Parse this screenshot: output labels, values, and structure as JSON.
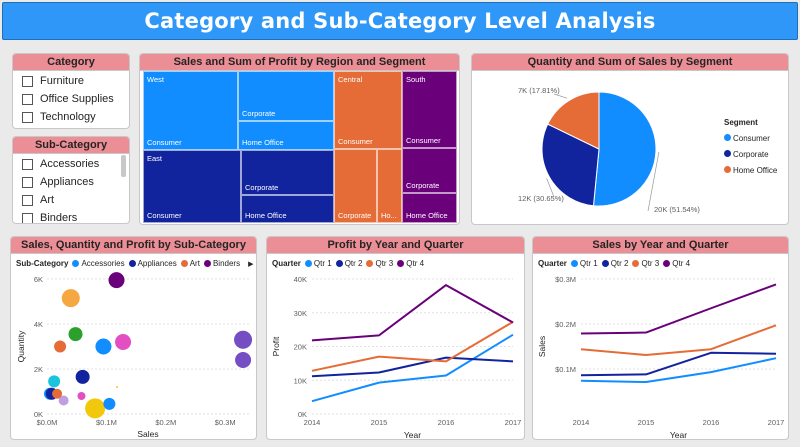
{
  "header": {
    "title": "Category and Sub-Category Level Analysis"
  },
  "category_slicer": {
    "title": "Category",
    "items": [
      "Furniture",
      "Office Supplies",
      "Technology"
    ]
  },
  "subcategory_slicer": {
    "title": "Sub-Category",
    "items": [
      "Accessories",
      "Appliances",
      "Art",
      "Binders"
    ]
  },
  "treemap": {
    "title": "Sales and Sum of Profit by Region and Segment",
    "regions": [
      {
        "name": "West",
        "color": "#118dff",
        "segments": [
          "Consumer",
          "Corporate",
          "Home Office"
        ]
      },
      {
        "name": "East",
        "color": "#12239e",
        "segments": [
          "Consumer",
          "Corporate",
          "Home Office"
        ]
      },
      {
        "name": "Central",
        "color": "#e66c37",
        "segments": [
          "Consumer",
          "Corporate",
          "Ho..."
        ]
      },
      {
        "name": "South",
        "color": "#6b007b",
        "segments": [
          "Consumer",
          "Corporate",
          "Home Office"
        ]
      }
    ]
  },
  "pie": {
    "title": "Quantity and Sum of Sales by Segment",
    "legend_title": "Segment",
    "legend": [
      {
        "label": "Consumer",
        "color": "#118dff"
      },
      {
        "label": "Corporate",
        "color": "#12239e"
      },
      {
        "label": "Home Office",
        "color": "#e66c37"
      }
    ],
    "labels": [
      "20K (51.54%)",
      "12K (30.65%)",
      "7K (17.81%)"
    ]
  },
  "scatter_card": {
    "title": "Sales, Quantity and Profit by Sub-Category",
    "legend_title": "Sub-Category",
    "legend": [
      {
        "label": "Accessories",
        "color": "#118dff"
      },
      {
        "label": "Appliances",
        "color": "#12239e"
      },
      {
        "label": "Art",
        "color": "#e66c37"
      },
      {
        "label": "Binders",
        "color": "#6b007b"
      }
    ],
    "more_glyph": "▶"
  },
  "profit_card": {
    "title": "Profit by Year and Quarter",
    "legend_title": "Quarter",
    "legend": [
      {
        "label": "Qtr 1",
        "color": "#118dff"
      },
      {
        "label": "Qtr 2",
        "color": "#12239e"
      },
      {
        "label": "Qtr 3",
        "color": "#e66c37"
      },
      {
        "label": "Qtr 4",
        "color": "#6b007b"
      }
    ]
  },
  "sales_card": {
    "title": "Sales by Year and Quarter",
    "legend_title": "Quarter",
    "legend": [
      {
        "label": "Qtr 1",
        "color": "#118dff"
      },
      {
        "label": "Qtr 2",
        "color": "#12239e"
      },
      {
        "label": "Qtr 3",
        "color": "#e66c37"
      },
      {
        "label": "Qtr 4",
        "color": "#6b007b"
      }
    ]
  },
  "chart_data": [
    {
      "type": "pie",
      "title": "Quantity and Sum of Sales by Segment",
      "categories": [
        "Consumer",
        "Corporate",
        "Home Office"
      ],
      "values": [
        51.54,
        30.65,
        17.81
      ],
      "value_labels": [
        "20K (51.54%)",
        "12K (30.65%)",
        "7K (17.81%)"
      ],
      "colors": [
        "#118dff",
        "#12239e",
        "#e66c37"
      ],
      "legend_placement": "right"
    },
    {
      "type": "scatter",
      "title": "Sales, Quantity and Profit by Sub-Category",
      "xlabel": "Sales",
      "ylabel": "Quantity",
      "xlim": [
        0,
        340000
      ],
      "ylim": [
        0,
        6000
      ],
      "xticks": [
        "$0.0M",
        "$0.1M",
        "$0.2M",
        "$0.3M"
      ],
      "xtick_values": [
        0,
        100000,
        200000,
        300000
      ],
      "yticks": [
        "0K",
        "2K",
        "4K",
        "6K"
      ],
      "ytick_values": [
        0,
        2000,
        4000,
        6000
      ],
      "points": [
        {
          "x": 5000,
          "y": 900,
          "size": 6,
          "color": "#118dff"
        },
        {
          "x": 12000,
          "y": 1450,
          "size": 6,
          "color": "#1ac4dc"
        },
        {
          "x": 8000,
          "y": 900,
          "size": 6,
          "color": "#12239e"
        },
        {
          "x": 22000,
          "y": 3000,
          "size": 6,
          "color": "#e66c37"
        },
        {
          "x": 48000,
          "y": 3550,
          "size": 7,
          "color": "#2ca02c"
        },
        {
          "x": 40000,
          "y": 5150,
          "size": 9,
          "color": "#f5a742"
        },
        {
          "x": 28000,
          "y": 600,
          "size": 5,
          "color": "#c09fe0"
        },
        {
          "x": 17000,
          "y": 900,
          "size": 5,
          "color": "#e66c37"
        },
        {
          "x": 58000,
          "y": 800,
          "size": 4,
          "color": "#e34fc3"
        },
        {
          "x": 60000,
          "y": 1650,
          "size": 7,
          "color": "#12239e"
        },
        {
          "x": 81000,
          "y": 250,
          "size": 10,
          "color": "#f2c80f"
        },
        {
          "x": 105000,
          "y": 450,
          "size": 6,
          "color": "#118dff"
        },
        {
          "x": 95000,
          "y": 3000,
          "size": 8,
          "color": "#118dff"
        },
        {
          "x": 128000,
          "y": 3200,
          "size": 8,
          "color": "#e34fc3"
        },
        {
          "x": 117000,
          "y": 5950,
          "size": 8,
          "color": "#6b007b"
        },
        {
          "x": 118000,
          "y": 1200,
          "size": 1,
          "color": "#f2c80f"
        },
        {
          "x": 330000,
          "y": 3300,
          "size": 9,
          "color": "#744ec2"
        },
        {
          "x": 330000,
          "y": 2400,
          "size": 8,
          "color": "#744ec2"
        }
      ]
    },
    {
      "type": "line",
      "title": "Profit by Year and Quarter",
      "xlabel": "Year",
      "ylabel": "Profit",
      "categories": [
        "2014",
        "2015",
        "2016",
        "2017"
      ],
      "ylim": [
        0,
        40000
      ],
      "yticks": [
        "0K",
        "10K",
        "20K",
        "30K",
        "40K"
      ],
      "ytick_values": [
        0,
        10000,
        20000,
        30000,
        40000
      ],
      "series": [
        {
          "name": "Qtr 1",
          "values": [
            3800,
            9300,
            11400,
            23500
          ],
          "color": "#118dff"
        },
        {
          "name": "Qtr 2",
          "values": [
            11200,
            12300,
            16700,
            15600
          ],
          "color": "#12239e"
        },
        {
          "name": "Qtr 3",
          "values": [
            12800,
            17000,
            15600,
            27300
          ],
          "color": "#e66c37"
        },
        {
          "name": "Qtr 4",
          "values": [
            21800,
            23300,
            38200,
            27100
          ],
          "color": "#6b007b"
        }
      ]
    },
    {
      "type": "line",
      "title": "Sales by Year and Quarter",
      "xlabel": "Year",
      "ylabel": "Sales",
      "categories": [
        "2014",
        "2015",
        "2016",
        "2017"
      ],
      "ylim": [
        0,
        300000
      ],
      "yticks": [
        "$0.1M",
        "$0.2M",
        "$0.3M"
      ],
      "ytick_values": [
        100000,
        200000,
        300000
      ],
      "series": [
        {
          "name": "Qtr 1",
          "values": [
            74000,
            71000,
            93000,
            124000
          ],
          "color": "#118dff"
        },
        {
          "name": "Qtr 2",
          "values": [
            86000,
            88000,
            136000,
            134000
          ],
          "color": "#12239e"
        },
        {
          "name": "Qtr 3",
          "values": [
            144000,
            131000,
            144000,
            197000
          ],
          "color": "#e66c37"
        },
        {
          "name": "Qtr 4",
          "values": [
            179000,
            181000,
            235000,
            288000
          ],
          "color": "#6b007b"
        }
      ]
    }
  ]
}
